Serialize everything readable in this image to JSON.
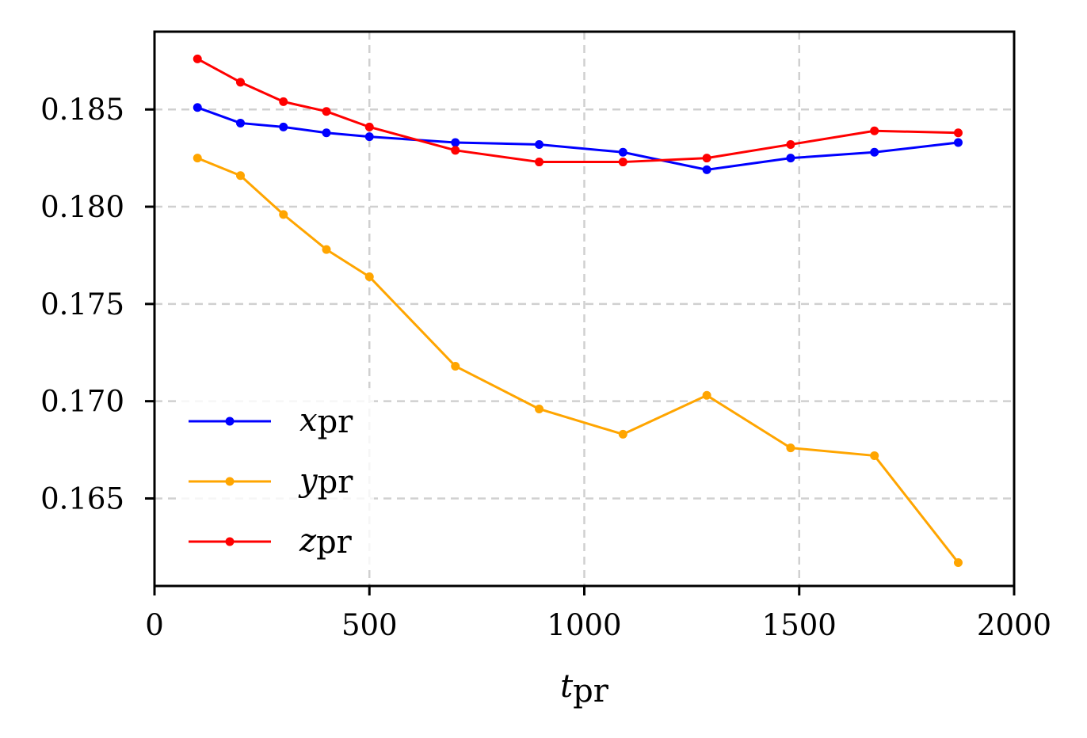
{
  "chart_data": {
    "type": "line",
    "title": "",
    "xlabel": {
      "main": "t",
      "sub": "pr"
    },
    "ylabel": "",
    "xlim": [
      0,
      2000
    ],
    "ylim": [
      0.1605,
      0.189
    ],
    "xticks": [
      0,
      500,
      1000,
      1500,
      2000
    ],
    "xtick_labels": [
      "0",
      "500",
      "1000",
      "1500",
      "2000"
    ],
    "yticks": [
      0.165,
      0.17,
      0.175,
      0.18,
      0.185
    ],
    "ytick_labels": [
      "0.165",
      "0.170",
      "0.175",
      "0.180",
      "0.185"
    ],
    "grid": true,
    "legend_position": "lower-left",
    "x": [
      100,
      200,
      300,
      400,
      500,
      700,
      895,
      1090,
      1285,
      1480,
      1675,
      1870
    ],
    "series": [
      {
        "name": "x_pr",
        "label_main": "x",
        "label_sub": "pr",
        "color": "#0000ff",
        "values": [
          0.1851,
          0.1843,
          0.1841,
          0.1838,
          0.1836,
          0.1833,
          0.1832,
          0.1828,
          0.1819,
          0.1825,
          0.1828,
          0.1833
        ]
      },
      {
        "name": "y_pr",
        "label_main": "y",
        "label_sub": "pr",
        "color": "#ffa500",
        "values": [
          0.1825,
          0.1816,
          0.1796,
          0.1778,
          0.1764,
          0.1718,
          0.1696,
          0.1683,
          0.1703,
          0.1676,
          0.1672,
          0.1617
        ]
      },
      {
        "name": "z_pr",
        "label_main": "z",
        "label_sub": "pr",
        "color": "#ff0000",
        "values": [
          0.1876,
          0.1864,
          0.1854,
          0.1849,
          0.1841,
          0.1829,
          0.1823,
          0.1823,
          0.1825,
          0.1832,
          0.1839,
          0.1838
        ]
      }
    ]
  }
}
